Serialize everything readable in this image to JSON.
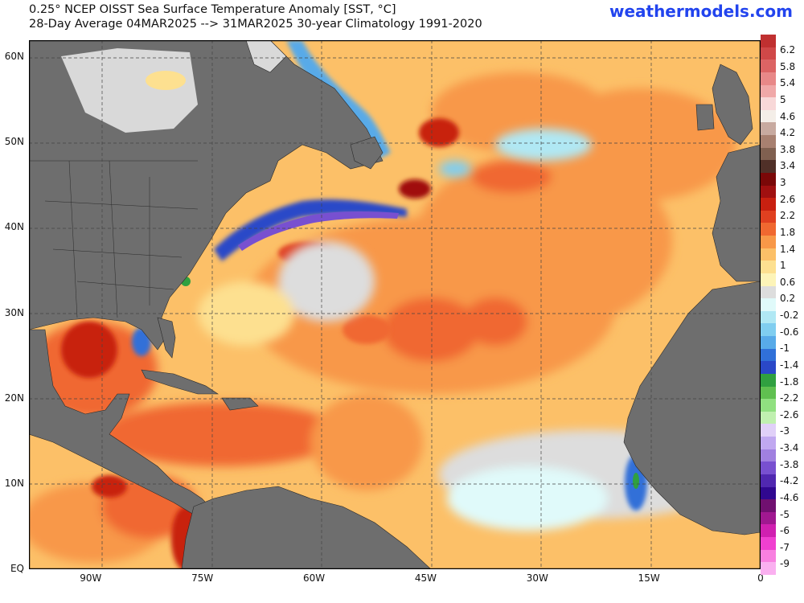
{
  "header": {
    "title_line1": "0.25° NCEP OISST Sea Surface Temperature Anomaly [SST, °C]",
    "title_line2": "28-Day Average 04MAR2025 --> 31MAR2025   30-year Climatology 1991-2020",
    "site": "weathermodels.com"
  },
  "map": {
    "lat_labels": [
      {
        "text": "60N",
        "lat": 60
      },
      {
        "text": "50N",
        "lat": 50
      },
      {
        "text": "40N",
        "lat": 40
      },
      {
        "text": "30N",
        "lat": 30
      },
      {
        "text": "20N",
        "lat": 20
      },
      {
        "text": "10N",
        "lat": 10
      },
      {
        "text": "EQ",
        "lat": 0
      }
    ],
    "lon_labels": [
      {
        "text": "90W",
        "lon": -90
      },
      {
        "text": "75W",
        "lon": -75
      },
      {
        "text": "60W",
        "lon": -60
      },
      {
        "text": "45W",
        "lon": -45
      },
      {
        "text": "30W",
        "lon": -30
      },
      {
        "text": "15W",
        "lon": -15
      },
      {
        "text": "0",
        "lon": 0
      }
    ],
    "colors": {
      "land": "#6e6e6e",
      "ice": "#d9d9d9",
      "grid": "#444444"
    }
  },
  "colorbar": {
    "labels": [
      "6.2",
      "5.8",
      "5.4",
      "5",
      "4.6",
      "4.2",
      "3.8",
      "3.4",
      "3",
      "2.6",
      "2.2",
      "1.8",
      "1.4",
      "1",
      "0.6",
      "0.2",
      "-0.2",
      "-0.6",
      "-1",
      "-1.4",
      "-1.8",
      "-2.2",
      "-2.6",
      "-3",
      "-3.4",
      "-3.8",
      "-4.2",
      "-4.6",
      "-5",
      "-6",
      "-7",
      "-9"
    ],
    "colors": [
      "#c03030",
      "#d04848",
      "#dc6464",
      "#e88888",
      "#f0a8a8",
      "#f8d8d8",
      "#f4eee8",
      "#c8aaa0",
      "#a88070",
      "#806050",
      "#503028",
      "#7a0808",
      "#a01010",
      "#c82010",
      "#e04020",
      "#f06830",
      "#f89848",
      "#fcc068",
      "#fde090",
      "#fdf4b8",
      "#dddddd",
      "#e0fafa",
      "#b0e8f4",
      "#80cef0",
      "#58aae8",
      "#3070d8",
      "#2a48c8",
      "#30a040",
      "#60c050",
      "#90e080",
      "#c0f0b0",
      "#e0d0f8",
      "#c0a8f0",
      "#a080e0",
      "#7850d0",
      "#5028b0",
      "#300890",
      "#701070",
      "#a01890",
      "#d020b0",
      "#f040d0",
      "#f880e0",
      "#fab0f0"
    ]
  }
}
